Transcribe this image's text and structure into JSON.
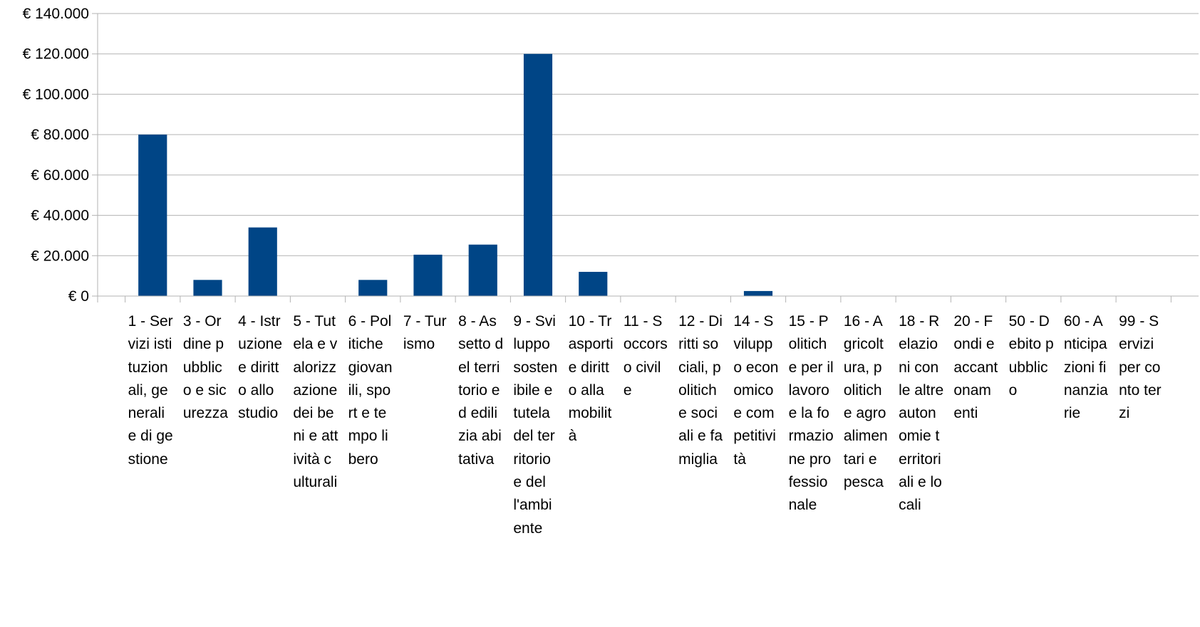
{
  "chart_data": {
    "type": "bar",
    "title": "",
    "xlabel": "",
    "ylabel": "",
    "ylim": [
      0,
      140000
    ],
    "y_ticks": [
      {
        "value": 0,
        "label": "€ 0"
      },
      {
        "value": 20000,
        "label": "€ 20.000"
      },
      {
        "value": 40000,
        "label": "€ 40.000"
      },
      {
        "value": 60000,
        "label": "€ 60.000"
      },
      {
        "value": 80000,
        "label": "€ 80.000"
      },
      {
        "value": 100000,
        "label": "€ 100.000"
      },
      {
        "value": 120000,
        "label": "€ 120.000"
      },
      {
        "value": 140000,
        "label": "€ 140.000"
      }
    ],
    "grid": true,
    "legend": "none",
    "categories": [
      "1 - Servizi istituzionali, generali e di gestione",
      "3 - Ordine pubblico e sicurezza",
      "4 - Istruzione e diritto allo studio",
      "5 - Tutela e valorizzazione dei beni e attività culturali",
      "6 - Politiche giovanili, sport e tempo libero",
      "7 - Turismo",
      "8 - Assetto del territorio ed edilizia abitativa",
      "9 - Sviluppo sostenibile e tutela del territorio e dell'ambiente",
      "10 - Trasporti e diritto alla mobilità",
      "11 - Soccorso civile",
      "12 - Diritti sociali, politiche sociali e famiglia",
      "14 - Sviluppo economico e competitività",
      "15 - Politiche per il lavoro e la formazione professionale",
      "16 - Agricoltura, politiche agroalimentari e pesca",
      "18 - Relazioni con le altre autonomie territoriali e locali",
      "20 - Fondi e accantonamenti",
      "50 - Debito pubblico",
      "60 - Anticipazioni finanziarie",
      "99 - Servizi per conto terzi"
    ],
    "values": [
      80000,
      8000,
      34000,
      0,
      8000,
      20500,
      25500,
      120000,
      12000,
      0,
      0,
      2500,
      0,
      0,
      0,
      0,
      0,
      0,
      0
    ],
    "colors": {
      "bar": "#004586",
      "grid": "#b3b3b3",
      "axis": "#b3b3b3"
    }
  }
}
